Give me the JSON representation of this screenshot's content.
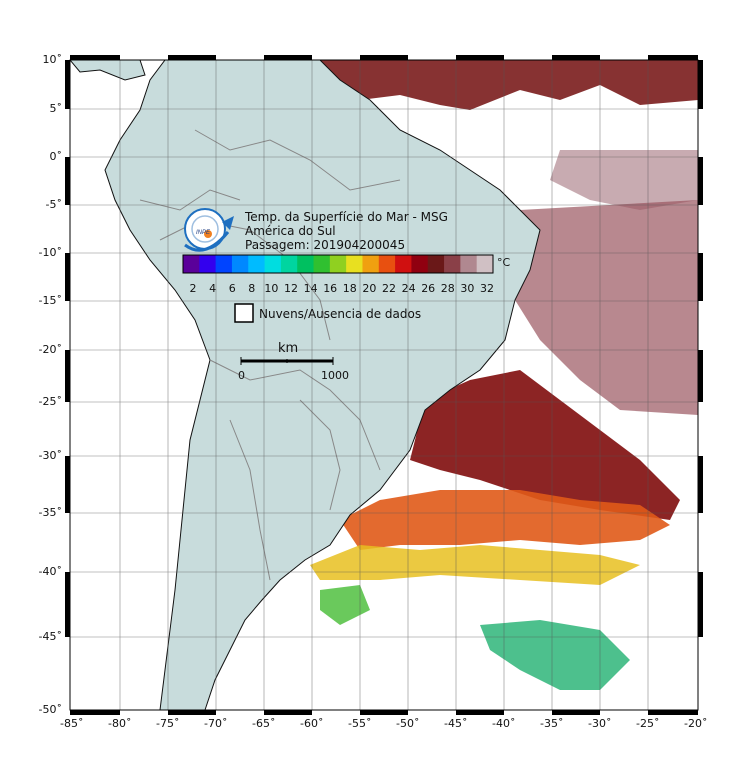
{
  "map": {
    "title_line1": "Temp. da Superfície do Mar - MSG",
    "title_line2": "América do Sul",
    "title_line3": "Passagem: 201904200045",
    "logo_text": "INPE",
    "colorbar": {
      "unit": "°C",
      "ticks": [
        "2",
        "4",
        "6",
        "8",
        "10",
        "12",
        "14",
        "16",
        "18",
        "20",
        "22",
        "24",
        "26",
        "28",
        "30",
        "32"
      ],
      "colors": [
        "#5a009a",
        "#3300ee",
        "#0044ff",
        "#0088ff",
        "#00bbff",
        "#00dde0",
        "#00d5a0",
        "#00c060",
        "#30c030",
        "#90d020",
        "#e8e020",
        "#f0a010",
        "#e85010",
        "#d01010",
        "#900010",
        "#6a1818",
        "#8a4048",
        "#b08890",
        "#d0c0c4"
      ]
    },
    "legend_no_data": "Nuvens/Ausencia de dados",
    "scalebar": {
      "unit": "km",
      "start": "0",
      "end": "1000"
    },
    "lon_labels": [
      "-85˚",
      "-80˚",
      "-75˚",
      "-70˚",
      "-65˚",
      "-60˚",
      "-55˚",
      "-50˚",
      "-45˚",
      "-40˚",
      "-35˚",
      "-30˚",
      "-25˚",
      "-20˚"
    ],
    "lat_labels": [
      "10˚",
      "5˚",
      "0˚",
      "-5˚",
      "-10˚",
      "-15˚",
      "-20˚",
      "-25˚",
      "-30˚",
      "-35˚",
      "-40˚",
      "-45˚",
      "-50˚"
    ],
    "colors": {
      "land": "#c8dcdc",
      "border": "#888888",
      "sst_warm": "#7a1515",
      "sst_mid": "#e06020",
      "sst_cool": "#30b040"
    }
  }
}
